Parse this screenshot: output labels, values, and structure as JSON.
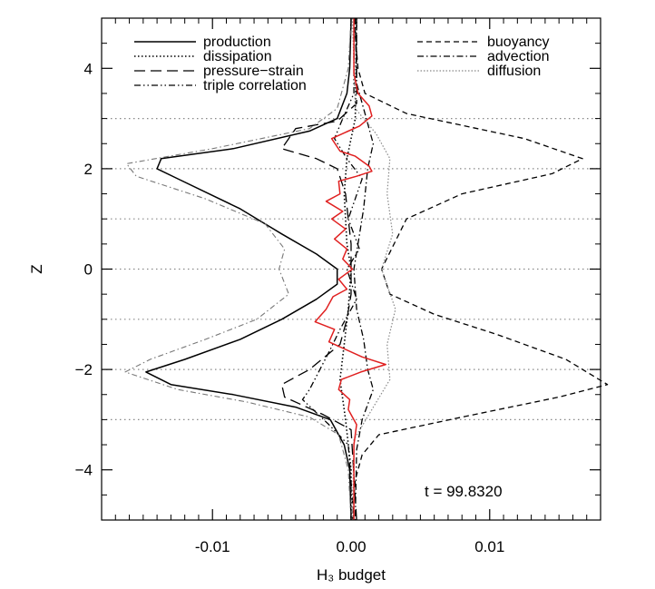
{
  "chart_data": {
    "type": "line",
    "title": "",
    "xlabel": "H₃ budget",
    "ylabel": "Z",
    "xlim": [
      -0.018,
      0.018
    ],
    "ylim": [
      -5,
      5
    ],
    "x_ticks": [
      {
        "value": -0.01,
        "label": "-0.01"
      },
      {
        "value": 0.0,
        "label": "0.00"
      },
      {
        "value": 0.01,
        "label": "0.01"
      }
    ],
    "y_ticks": [
      {
        "value": -4,
        "label": "−4"
      },
      {
        "value": -2,
        "label": "−2"
      },
      {
        "value": 0,
        "label": "0"
      },
      {
        "value": 2,
        "label": "2"
      },
      {
        "value": 4,
        "label": "4"
      }
    ],
    "reference_lines_z": [
      -3,
      -2,
      -1,
      0,
      1,
      2,
      3
    ],
    "annotation": "t  =  99.8320",
    "legend": {
      "left": [
        "production",
        "dissipation",
        "pressure−strain",
        "triple correlation"
      ],
      "right": [
        "buoyancy",
        "advection",
        "diffusion"
      ]
    },
    "series": [
      {
        "name": "production",
        "style": "solid",
        "color": "#000000",
        "points": [
          [
            0,
            5
          ],
          [
            -0.0001,
            4
          ],
          [
            -0.0003,
            3.5
          ],
          [
            -0.001,
            3
          ],
          [
            -0.003,
            2.75
          ],
          [
            -0.0085,
            2.4
          ],
          [
            -0.0137,
            2.2
          ],
          [
            -0.014,
            2.0
          ],
          [
            -0.0125,
            1.8
          ],
          [
            -0.008,
            1.2
          ],
          [
            -0.005,
            0.7
          ],
          [
            -0.0025,
            0.3
          ],
          [
            -0.001,
            0
          ],
          [
            -0.001,
            -0.3
          ],
          [
            -0.0025,
            -0.6
          ],
          [
            -0.005,
            -1.0
          ],
          [
            -0.008,
            -1.4
          ],
          [
            -0.012,
            -1.8
          ],
          [
            -0.0148,
            -2.05
          ],
          [
            -0.013,
            -2.3
          ],
          [
            -0.0085,
            -2.5
          ],
          [
            -0.004,
            -2.75
          ],
          [
            -0.0015,
            -3
          ],
          [
            -0.0005,
            -3.5
          ],
          [
            -0.0001,
            -4
          ],
          [
            0,
            -5
          ]
        ]
      },
      {
        "name": "dissipation",
        "style": "dotted",
        "color": "#000000",
        "points": [
          [
            0.0004,
            5
          ],
          [
            0.0003,
            3
          ],
          [
            -0.0003,
            2.2
          ],
          [
            -0.0005,
            1.5
          ],
          [
            -0.0003,
            0.5
          ],
          [
            0,
            0
          ],
          [
            -0.0002,
            -0.8
          ],
          [
            -0.0005,
            -1.5
          ],
          [
            -0.0008,
            -2.2
          ],
          [
            -0.0004,
            -3
          ],
          [
            0,
            -4
          ],
          [
            0,
            -5
          ]
        ]
      },
      {
        "name": "pressure−strain",
        "style": "dashed-long",
        "color": "#000000",
        "points": [
          [
            0.0004,
            5
          ],
          [
            0.0004,
            3.3
          ],
          [
            -0.001,
            2.95
          ],
          [
            -0.004,
            2.8
          ],
          [
            -0.005,
            2.4
          ],
          [
            -0.0025,
            2.2
          ],
          [
            -0.001,
            2.0
          ],
          [
            -0.0004,
            1.5
          ],
          [
            -0.0002,
            1.0
          ],
          [
            0,
            0.5
          ],
          [
            0,
            0
          ],
          [
            0,
            -0.5
          ],
          [
            -0.0003,
            -1.0
          ],
          [
            -0.0008,
            -1.5
          ],
          [
            -0.003,
            -2.0
          ],
          [
            -0.005,
            -2.3
          ],
          [
            -0.0048,
            -2.55
          ],
          [
            -0.002,
            -2.9
          ],
          [
            0,
            -3.2
          ],
          [
            0.0004,
            -5
          ]
        ]
      },
      {
        "name": "triple correlation",
        "style": "dash-dot-dot",
        "color": "#000000",
        "points": [
          [
            0.0002,
            5
          ],
          [
            0.0002,
            3.5
          ],
          [
            -0.0006,
            3.0
          ],
          [
            -0.0012,
            2.6
          ],
          [
            -0.0003,
            2.2
          ],
          [
            0.0008,
            1.8
          ],
          [
            -0.0002,
            1.0
          ],
          [
            0.0006,
            0.4
          ],
          [
            -0.0003,
            0
          ],
          [
            0.0004,
            -0.6
          ],
          [
            -0.0008,
            -1.2
          ],
          [
            -0.0015,
            -1.6
          ],
          [
            -0.003,
            -2.4
          ],
          [
            -0.0035,
            -2.6
          ],
          [
            -0.0016,
            -3.1
          ],
          [
            -0.0002,
            -3.5
          ],
          [
            0.0002,
            -5
          ]
        ]
      },
      {
        "name": "buoyancy",
        "style": "dashed-short",
        "color": "#000000",
        "points": [
          [
            0.0002,
            5
          ],
          [
            0.0005,
            4
          ],
          [
            0.001,
            3.5
          ],
          [
            0.004,
            3.1
          ],
          [
            0.0125,
            2.6
          ],
          [
            0.0167,
            2.2
          ],
          [
            0.0145,
            1.9
          ],
          [
            0.008,
            1.5
          ],
          [
            0.004,
            1.0
          ],
          [
            0.0022,
            0
          ],
          [
            0.0028,
            -0.5
          ],
          [
            0.006,
            -0.9
          ],
          [
            0.0105,
            -1.3
          ],
          [
            0.0155,
            -1.8
          ],
          [
            0.0185,
            -2.3
          ],
          [
            0.015,
            -2.55
          ],
          [
            0.008,
            -2.95
          ],
          [
            0.002,
            -3.3
          ],
          [
            0.0008,
            -3.7
          ],
          [
            0.0003,
            -4.2
          ],
          [
            0.0001,
            -5
          ]
        ]
      },
      {
        "name": "advection",
        "style": "dash-dot",
        "color": "#000000",
        "points": [
          [
            0.0003,
            5
          ],
          [
            0.0004,
            3.7
          ],
          [
            0.001,
            3.1
          ],
          [
            0.0016,
            2.5
          ],
          [
            0.0012,
            2.0
          ],
          [
            0.0009,
            1.2
          ],
          [
            0.0005,
            0.5
          ],
          [
            0.0002,
            0
          ],
          [
            0.0004,
            -0.8
          ],
          [
            0.0009,
            -1.4
          ],
          [
            0.0012,
            -2.0
          ],
          [
            0.0016,
            -2.4
          ],
          [
            0.0008,
            -3.0
          ],
          [
            0.0004,
            -3.6
          ],
          [
            0.0003,
            -5
          ]
        ]
      },
      {
        "name": "diffusion",
        "style": "dotted-gray",
        "color": "#888888",
        "points": [
          [
            0.0001,
            5
          ],
          [
            0.0003,
            3.2
          ],
          [
            0.0018,
            2.7
          ],
          [
            0.0028,
            2.2
          ],
          [
            0.0026,
            1.5
          ],
          [
            0.003,
            0.7
          ],
          [
            0.0022,
            0
          ],
          [
            0.0032,
            -0.8
          ],
          [
            0.0026,
            -1.5
          ],
          [
            0.0028,
            -2.2
          ],
          [
            0.0015,
            -2.8
          ],
          [
            0.0002,
            -3.4
          ],
          [
            0.0001,
            -5
          ]
        ]
      },
      {
        "name": "",
        "style": "dash-dot-gray",
        "color": "#777777",
        "points": [
          [
            0,
            5
          ],
          [
            -0.0002,
            4
          ],
          [
            -0.001,
            3.2
          ],
          [
            -0.003,
            2.8
          ],
          [
            -0.01,
            2.4
          ],
          [
            -0.0162,
            2.1
          ],
          [
            -0.0155,
            1.85
          ],
          [
            -0.0105,
            1.4
          ],
          [
            -0.0062,
            0.9
          ],
          [
            -0.0048,
            0.4
          ],
          [
            -0.0052,
            0
          ],
          [
            -0.0045,
            -0.5
          ],
          [
            -0.0068,
            -1.0
          ],
          [
            -0.0105,
            -1.4
          ],
          [
            -0.0145,
            -1.8
          ],
          [
            -0.0163,
            -2.05
          ],
          [
            -0.0125,
            -2.4
          ],
          [
            -0.0075,
            -2.65
          ],
          [
            -0.003,
            -2.95
          ],
          [
            -0.0009,
            -3.3
          ],
          [
            -0.0002,
            -4
          ],
          [
            0,
            -5
          ]
        ]
      },
      {
        "name": "",
        "style": "solid",
        "color": "#e02020",
        "points": [
          [
            0.0002,
            5
          ],
          [
            0.0002,
            3.9
          ],
          [
            0.0005,
            3.5
          ],
          [
            0.0013,
            3.25
          ],
          [
            0.0015,
            3.05
          ],
          [
            0.0006,
            2.85
          ],
          [
            -0.0014,
            2.6
          ],
          [
            -0.0008,
            2.35
          ],
          [
            0.0003,
            2.25
          ],
          [
            0.0013,
            2.05
          ],
          [
            0.0015,
            1.95
          ],
          [
            0.0004,
            1.85
          ],
          [
            -0.0009,
            1.75
          ],
          [
            -0.0008,
            1.5
          ],
          [
            -0.0018,
            1.35
          ],
          [
            -0.0006,
            1.15
          ],
          [
            -0.0014,
            1.0
          ],
          [
            -0.0004,
            0.8
          ],
          [
            -0.0012,
            0.6
          ],
          [
            -0.0003,
            0.4
          ],
          [
            -0.0006,
            0.2
          ],
          [
            0.0001,
            0
          ],
          [
            -0.0009,
            -0.2
          ],
          [
            -0.0003,
            -0.4
          ],
          [
            -0.0013,
            -0.55
          ],
          [
            -0.0018,
            -0.8
          ],
          [
            -0.0026,
            -1.05
          ],
          [
            -0.0012,
            -1.2
          ],
          [
            -0.0016,
            -1.45
          ],
          [
            -0.0004,
            -1.6
          ],
          [
            0.0008,
            -1.75
          ],
          [
            0.0025,
            -1.9
          ],
          [
            0.0007,
            -2.05
          ],
          [
            -0.0007,
            -2.2
          ],
          [
            -0.0009,
            -2.4
          ],
          [
            -0.0001,
            -2.6
          ],
          [
            -0.0002,
            -2.8
          ],
          [
            0.0004,
            -3.1
          ],
          [
            0.0002,
            -3.5
          ],
          [
            0.0002,
            -5
          ]
        ]
      }
    ]
  }
}
